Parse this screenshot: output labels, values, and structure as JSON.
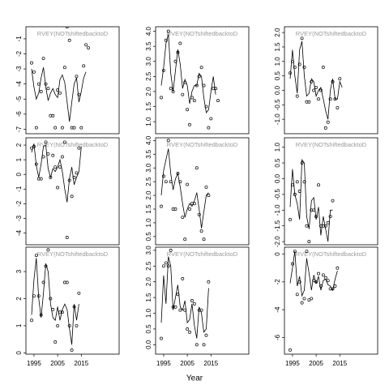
{
  "xlabel": "Year",
  "chart_data": [
    {
      "type": "line",
      "title": "RVEY(NOTshiftedbacktoD",
      "xlim": [
        1991.6,
        2031
      ],
      "ylim": [
        -7.3,
        -0.2
      ],
      "yticks": [
        -7,
        -6,
        -5,
        -4,
        -3,
        -2,
        -1
      ],
      "x": [
        1994,
        1995,
        1996,
        1997,
        1998,
        1999,
        2000,
        2001,
        2002,
        2003,
        2004,
        2005,
        2006,
        2007,
        2008,
        2009,
        2010,
        2011,
        2012,
        2013,
        2014,
        2015,
        2016,
        2017,
        2018
      ],
      "series": [
        {
          "style": "markers",
          "color": "#000000",
          "values": [
            -2.6,
            -3.2,
            -6.9,
            -4,
            -4.5,
            -2.3,
            -4,
            -4.3,
            -6.1,
            -6.1,
            -6.9,
            -4.4,
            -4.6,
            -6.9,
            -2.9,
            -0.2,
            -1.1,
            -6.9,
            -6.9,
            -3.5,
            -4.7,
            -6.9,
            -2.8,
            -1.4,
            -1.6
          ]
        },
        {
          "style": "line",
          "color": "#000000",
          "values": [
            -3,
            -4.2,
            -5,
            -4.6,
            -3.6,
            -2.9,
            -4.2,
            -5.1,
            -4.6,
            -4.3,
            -4.7,
            -4.9,
            -3.7,
            -3.4,
            -3.9,
            -5.2,
            -6.5,
            -5.2,
            -4,
            -3.6,
            -5.2,
            -4.5,
            -3.6,
            -3.2,
            null
          ]
        }
      ]
    },
    {
      "type": "line",
      "title": "RVEY(NOTshiftedbacktoD",
      "xlim": [
        1991.6,
        2031
      ],
      "ylim": [
        0.6,
        4.15
      ],
      "yticks": [
        {
          "value": 1,
          "label": "1.0"
        },
        {
          "value": 1.5,
          "label": "1.5"
        },
        {
          "value": 2,
          "label": "2.0"
        },
        {
          "value": 2.5,
          "label": "2.5"
        },
        {
          "value": 3,
          "label": "3.0"
        },
        {
          "value": 3.5,
          "label": "3.5"
        },
        {
          "value": 4,
          "label": "4.0"
        }
      ],
      "x": [
        1994,
        1995,
        1996,
        1997,
        1998,
        1999,
        2000,
        2001,
        2002,
        2003,
        2004,
        2005,
        2006,
        2007,
        2008,
        2009,
        2010,
        2011,
        2012,
        2013,
        2014,
        2015,
        2016,
        2017,
        2018
      ],
      "series": [
        {
          "style": "markers",
          "color": "#000000",
          "values": [
            1.8,
            2.7,
            3.7,
            4.0,
            2.1,
            2.0,
            3.0,
            3.3,
            3.6,
            1.9,
            2.3,
            1.4,
            0.9,
            1.8,
            1.7,
            2.2,
            2.5,
            2.8,
            2.2,
            1.5,
            0.8,
            1.1,
            2.1,
            2.1,
            1.7
          ]
        },
        {
          "style": "line",
          "color": "#000000",
          "values": [
            2.2,
            2.8,
            3.6,
            3.9,
            2.6,
            2.0,
            2.7,
            3.4,
            2.9,
            2.1,
            2.4,
            2.2,
            1.6,
            2.0,
            2.2,
            2.2,
            2.6,
            2.5,
            1.8,
            1.3,
            1.4,
            2.0,
            2.5,
            1.9,
            null
          ]
        }
      ]
    },
    {
      "type": "line",
      "title": "RVEY(NOTshiftedbacktoD",
      "xlim": [
        1991.6,
        2031
      ],
      "ylim": [
        -1.5,
        2.2
      ],
      "yticks": [
        {
          "value": -1,
          "label": "-1.0"
        },
        {
          "value": -0.5,
          "label": "-0.5"
        },
        {
          "value": 0,
          "label": "0.0"
        },
        {
          "value": 0.5,
          "label": "0.5"
        },
        {
          "value": 1,
          "label": "1.0"
        },
        {
          "value": 1.5,
          "label": "1.5"
        },
        {
          "value": 2,
          "label": "2.0"
        }
      ],
      "x": [
        1994,
        1995,
        1996,
        1997,
        1998,
        1999,
        2000,
        2001,
        2002,
        2003,
        2004,
        2005,
        2006,
        2007,
        2008,
        2009,
        2010,
        2011,
        2012,
        2013,
        2014,
        2015,
        2016,
        2017,
        2018
      ],
      "series": [
        {
          "style": "markers",
          "color": "#000000",
          "values": [
            0.6,
            1.0,
            0.8,
            -0.2,
            0.9,
            1.8,
            0.8,
            -0.4,
            -0.4,
            0.3,
            0.0,
            0.1,
            -0.3,
            0.0,
            0.8,
            -1.3,
            -1.1,
            -0.3,
            0.3,
            -0.3,
            -0.6,
            0.4,
            null,
            null,
            null
          ]
        },
        {
          "style": "line",
          "color": "#000000",
          "values": [
            0.4,
            1.4,
            0.5,
            -0.1,
            1.4,
            1.7,
            0.5,
            -0.2,
            -0.1,
            0.4,
            0.3,
            -0.2,
            0.0,
            0.1,
            -0.3,
            -0.7,
            -1.0,
            0.0,
            0.4,
            -0.3,
            -0.3,
            0.3,
            0.1,
            null,
            null
          ]
        }
      ]
    },
    {
      "type": "line",
      "title": "RVEY(NOTshiftedbacktoD",
      "xlim": [
        1991.6,
        2031
      ],
      "ylim": [
        -4.8,
        2.5
      ],
      "yticks": [
        -4,
        -3,
        -2,
        -1,
        0,
        1,
        2
      ],
      "x": [
        1994,
        1995,
        1996,
        1997,
        1998,
        1999,
        2000,
        2001,
        2002,
        2003,
        2004,
        2005,
        2006,
        2007,
        2008,
        2009,
        2010,
        2011,
        2012,
        2013,
        2014,
        2015,
        2016,
        2017,
        2018
      ],
      "series": [
        {
          "style": "markers",
          "color": "#000000",
          "values": [
            1.8,
            1.9,
            0.7,
            -0.3,
            -0.3,
            1.2,
            2.2,
            1.4,
            -0.2,
            1.3,
            0.5,
            -0.9,
            0.5,
            1.2,
            2.2,
            -4.3,
            -0.4,
            -1.5,
            -0.2,
            0.1,
            1.8,
            null,
            null,
            null,
            null
          ]
        },
        {
          "style": "line",
          "color": "#000000",
          "values": [
            1.5,
            2.1,
            0.6,
            -0.2,
            0.7,
            1.9,
            2.0,
            0.4,
            -0.2,
            0.4,
            0.2,
            0.5,
            1.0,
            0.2,
            -1.0,
            -1.9,
            -0.3,
            0.5,
            -0.7,
            -0.2,
            0.2,
            1.9,
            null,
            null,
            null
          ]
        }
      ]
    },
    {
      "type": "line",
      "title": "RVEY(NOTshiftedbacktoD",
      "xlim": [
        1991.6,
        2031
      ],
      "ylim": [
        0.2,
        4.1
      ],
      "yticks": [
        {
          "value": 0.5,
          "label": "0.5"
        },
        {
          "value": 1,
          "label": "1.0"
        },
        {
          "value": 1.5,
          "label": "1.5"
        },
        {
          "value": 2,
          "label": "2.0"
        },
        {
          "value": 2.5,
          "label": "2.5"
        },
        {
          "value": 3,
          "label": "3.0"
        },
        {
          "value": 3.5,
          "label": "3.5"
        },
        {
          "value": 4,
          "label": "4.0"
        }
      ],
      "x": [
        1994,
        1995,
        1996,
        1997,
        1998,
        1999,
        2000,
        2001,
        2002,
        2003,
        2004,
        2005,
        2006,
        2007,
        2008,
        2009,
        2010,
        2011,
        2012,
        2013,
        2014,
        2015,
        2016,
        2017,
        2018
      ],
      "series": [
        {
          "style": "markers",
          "color": "#000000",
          "values": [
            1.6,
            2.7,
            2.5,
            4.0,
            2.5,
            1.5,
            1.5,
            2.8,
            2.5,
            1.2,
            0.4,
            2.4,
            1.5,
            1.7,
            1.7,
            3.0,
            1.3,
            0.7,
            0.4,
            2.3,
            2.0,
            null,
            null,
            null,
            null
          ]
        },
        {
          "style": "line",
          "color": "#000000",
          "values": [
            2.0,
            2.9,
            3.3,
            3.7,
            2.8,
            2.2,
            2.6,
            2.8,
            2.3,
            1.7,
            1.2,
            1.5,
            1.7,
            1.6,
            1.8,
            2.1,
            1.5,
            0.8,
            1.4,
            2.0,
            2.1,
            null,
            null,
            null,
            null
          ]
        }
      ]
    },
    {
      "type": "line",
      "title": "RVEY(NOTshiftedbacktoD",
      "xlim": [
        1991.6,
        2031
      ],
      "ylim": [
        -2.1,
        1.3
      ],
      "yticks": [
        {
          "value": -2,
          "label": "-2.0"
        },
        {
          "value": -1.5,
          "label": "-1.5"
        },
        {
          "value": -1,
          "label": "-1.0"
        },
        {
          "value": -0.5,
          "label": "-0.5"
        },
        {
          "value": 0,
          "label": "0.0"
        },
        {
          "value": 0.5,
          "label": "0.5"
        },
        {
          "value": 1,
          "label": "1.0"
        }
      ],
      "x": [
        1994,
        1995,
        1996,
        1997,
        1998,
        1999,
        2000,
        2001,
        2002,
        2003,
        2004,
        2005,
        2006,
        2007,
        2008,
        2009,
        2010,
        2011,
        2012,
        2013,
        2014,
        2015,
        2016,
        2017,
        2018
      ],
      "series": [
        {
          "style": "markers",
          "color": "#000000",
          "values": [
            -1.3,
            -0.2,
            -0.5,
            -0.1,
            -0.4,
            0.5,
            -0.1,
            -1.5,
            -2.0,
            -1.0,
            -1.0,
            -1.2,
            -0.2,
            -1.5,
            -1.5,
            -1.5,
            -1.4,
            -1.2,
            -0.7,
            null,
            null,
            null,
            null,
            null,
            null
          ]
        },
        {
          "style": "line",
          "color": "#000000",
          "values": [
            -0.9,
            0.3,
            -0.5,
            -0.8,
            -1.3,
            0.6,
            0.5,
            -1.2,
            -1.6,
            -0.7,
            -0.6,
            -1.3,
            -0.9,
            -1.8,
            -1.2,
            -1.6,
            -2.0,
            -1.0,
            -1.0,
            null,
            null,
            null,
            null,
            null,
            null
          ]
        }
      ]
    },
    {
      "type": "line",
      "title": "RVEY(NOTshiftedbacktoD",
      "xlim": [
        1991.6,
        2031
      ],
      "ylim": [
        -0.05,
        3.9
      ],
      "yticks": [
        0,
        1,
        2,
        3
      ],
      "xticks": [
        1995,
        2005,
        2015
      ],
      "x": [
        1994,
        1995,
        1996,
        1997,
        1998,
        1999,
        2000,
        2001,
        2002,
        2003,
        2004,
        2005,
        2006,
        2007,
        2008,
        2009,
        2010,
        2011,
        2012,
        2013,
        2014,
        2015,
        2016,
        2017,
        2018
      ],
      "series": [
        {
          "style": "markers",
          "color": "#000000",
          "values": [
            1.2,
            2.1,
            3.6,
            2.1,
            1.4,
            2.6,
            3.2,
            3.8,
            2.0,
            1.6,
            0.4,
            1.0,
            1.5,
            1.5,
            2.6,
            2.6,
            1.0,
            0.1,
            1.7,
            1.0,
            2.2,
            null,
            null,
            null,
            null
          ]
        },
        {
          "style": "line",
          "color": "#000000",
          "values": [
            1.4,
            2.7,
            3.5,
            2.0,
            1.3,
            2.2,
            3.3,
            3.0,
            1.8,
            1.3,
            1.2,
            1.7,
            1.2,
            1.6,
            1.8,
            1.6,
            0.9,
            0.3,
            1.8,
            1.2,
            1.8,
            null,
            null,
            null,
            null
          ]
        }
      ]
    },
    {
      "type": "line",
      "title": "RVEY(NOTshiftedbacktoD",
      "xlim": [
        1991.6,
        2031
      ],
      "ylim": [
        -0.3,
        3.1
      ],
      "yticks": [
        {
          "value": 0,
          "label": "0.0"
        },
        {
          "value": 0.5,
          "label": "0.5"
        },
        {
          "value": 1,
          "label": "1.0"
        },
        {
          "value": 1.5,
          "label": "1.5"
        },
        {
          "value": 2,
          "label": "2.0"
        },
        {
          "value": 2.5,
          "label": "2.5"
        },
        {
          "value": 3,
          "label": "3.0"
        }
      ],
      "xticks": [
        1995,
        2005,
        2015
      ],
      "x": [
        1994,
        1995,
        1996,
        1997,
        1998,
        1999,
        2000,
        2001,
        2002,
        2003,
        2004,
        2005,
        2006,
        2007,
        2008,
        2009,
        2010,
        2011,
        2012,
        2013,
        2014,
        2015,
        2016,
        2017,
        2018
      ],
      "series": [
        {
          "style": "markers",
          "color": "#000000",
          "values": [
            0.2,
            2.5,
            2.6,
            2.5,
            3.0,
            1.2,
            1.2,
            1.6,
            1.1,
            2.1,
            1.1,
            0.5,
            0.4,
            1.4,
            1.3,
            0.0,
            1.1,
            1.1,
            0.0,
            0.3,
            2.0,
            null,
            null,
            null,
            null
          ]
        },
        {
          "style": "line",
          "color": "#000000",
          "values": [
            0.7,
            2.2,
            1.3,
            2.8,
            2.5,
            1.1,
            1.5,
            1.9,
            1.2,
            1.1,
            1.4,
            0.7,
            0.8,
            1.3,
            0.6,
            0.2,
            1.2,
            1.0,
            0.4,
            0.5,
            1.8,
            null,
            null,
            null,
            null
          ]
        }
      ]
    },
    {
      "type": "line",
      "title": "RVEY(NOTshiftedbacktoD",
      "xlim": [
        1991.6,
        2031
      ],
      "ylim": [
        -7.2,
        0.5
      ],
      "yticks": [
        -6,
        -4,
        -2,
        0
      ],
      "xticks": [
        1995,
        2005,
        2015
      ],
      "x": [
        1994,
        1995,
        1996,
        1997,
        1998,
        1999,
        2000,
        2001,
        2002,
        2003,
        2004,
        2005,
        2006,
        2007,
        2008,
        2009,
        2010,
        2011,
        2012,
        2013,
        2014,
        2015,
        2016,
        2017,
        2018
      ],
      "series": [
        {
          "style": "markers",
          "color": "#000000",
          "values": [
            -6.9,
            -0.7,
            0.2,
            -2.9,
            -2.0,
            -3.5,
            -3.2,
            0.2,
            -3.3,
            -3.2,
            -1.9,
            -2.0,
            -1.4,
            -2.3,
            -1.5,
            -1.7,
            -1.9,
            -2.5,
            -2.5,
            -2.3,
            -1.0,
            null,
            null,
            null,
            null
          ]
        },
        {
          "style": "line",
          "color": "#000000",
          "values": [
            -2.1,
            -1.0,
            0.2,
            -2.3,
            -1.6,
            -3.0,
            -2.6,
            -0.3,
            -1.4,
            -2.6,
            -1.5,
            -2.1,
            -1.6,
            -2.6,
            -1.9,
            -1.8,
            -2.2,
            -2.3,
            -2.6,
            -1.8,
            -1.2,
            null,
            null,
            null,
            null
          ]
        }
      ]
    }
  ]
}
